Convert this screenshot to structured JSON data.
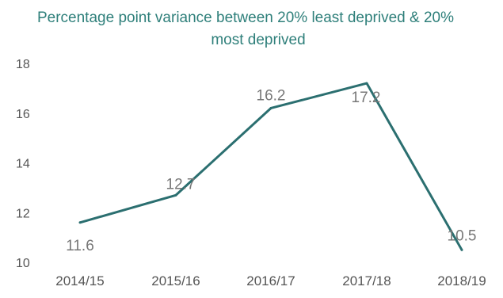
{
  "chart_data": {
    "type": "line",
    "title": "Percentage point variance between 20% least deprived & 20% most deprived",
    "title_lines": [
      "Percentage point variance between 20% least deprived & 20%",
      "most deprived"
    ],
    "categories": [
      "2014/15",
      "2015/16",
      "2016/17",
      "2017/18",
      "2018/19"
    ],
    "values": [
      11.6,
      12.7,
      16.2,
      17.2,
      10.5
    ],
    "data_labels": [
      "11.6",
      "12.7",
      "16.2",
      "17.2",
      "10.5"
    ],
    "ylim": [
      10,
      18
    ],
    "yticks": [
      "18",
      "16",
      "14",
      "12",
      "10"
    ],
    "xlabel": "",
    "ylabel": "",
    "grid": false,
    "line_color": "#2b6f70",
    "title_color": "#2e7f7a"
  }
}
